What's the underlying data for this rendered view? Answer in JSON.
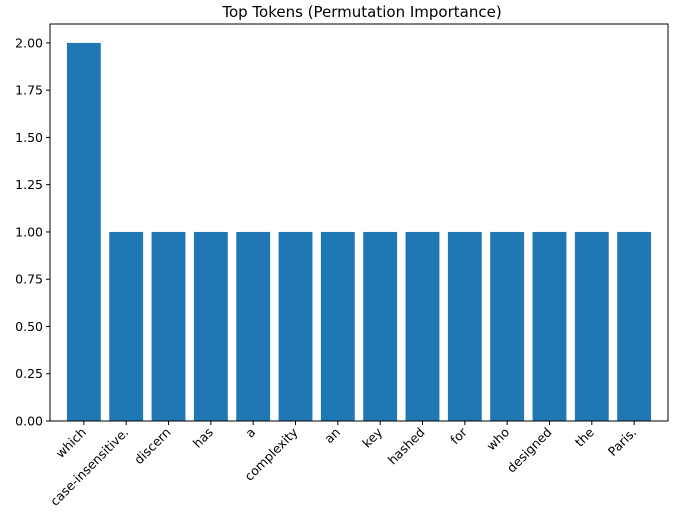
{
  "chart_data": {
    "type": "bar",
    "title": "Top Tokens (Permutation Importance)",
    "xlabel": "",
    "ylabel": "",
    "categories": [
      "which",
      "case-insensitive.",
      "discern",
      "has",
      "a",
      "complexity",
      "an",
      "key",
      "hashed",
      "for",
      "who",
      "designed",
      "the",
      "Paris."
    ],
    "values": [
      2.0,
      1.0,
      1.0,
      1.0,
      1.0,
      1.0,
      1.0,
      1.0,
      1.0,
      1.0,
      1.0,
      1.0,
      1.0,
      1.0
    ],
    "yticks": [
      "0.00",
      "0.25",
      "0.50",
      "0.75",
      "1.00",
      "1.25",
      "1.50",
      "1.75",
      "2.00"
    ],
    "ylim": [
      0,
      2.1
    ],
    "grid": false,
    "bar_color": "#1f77b4"
  }
}
